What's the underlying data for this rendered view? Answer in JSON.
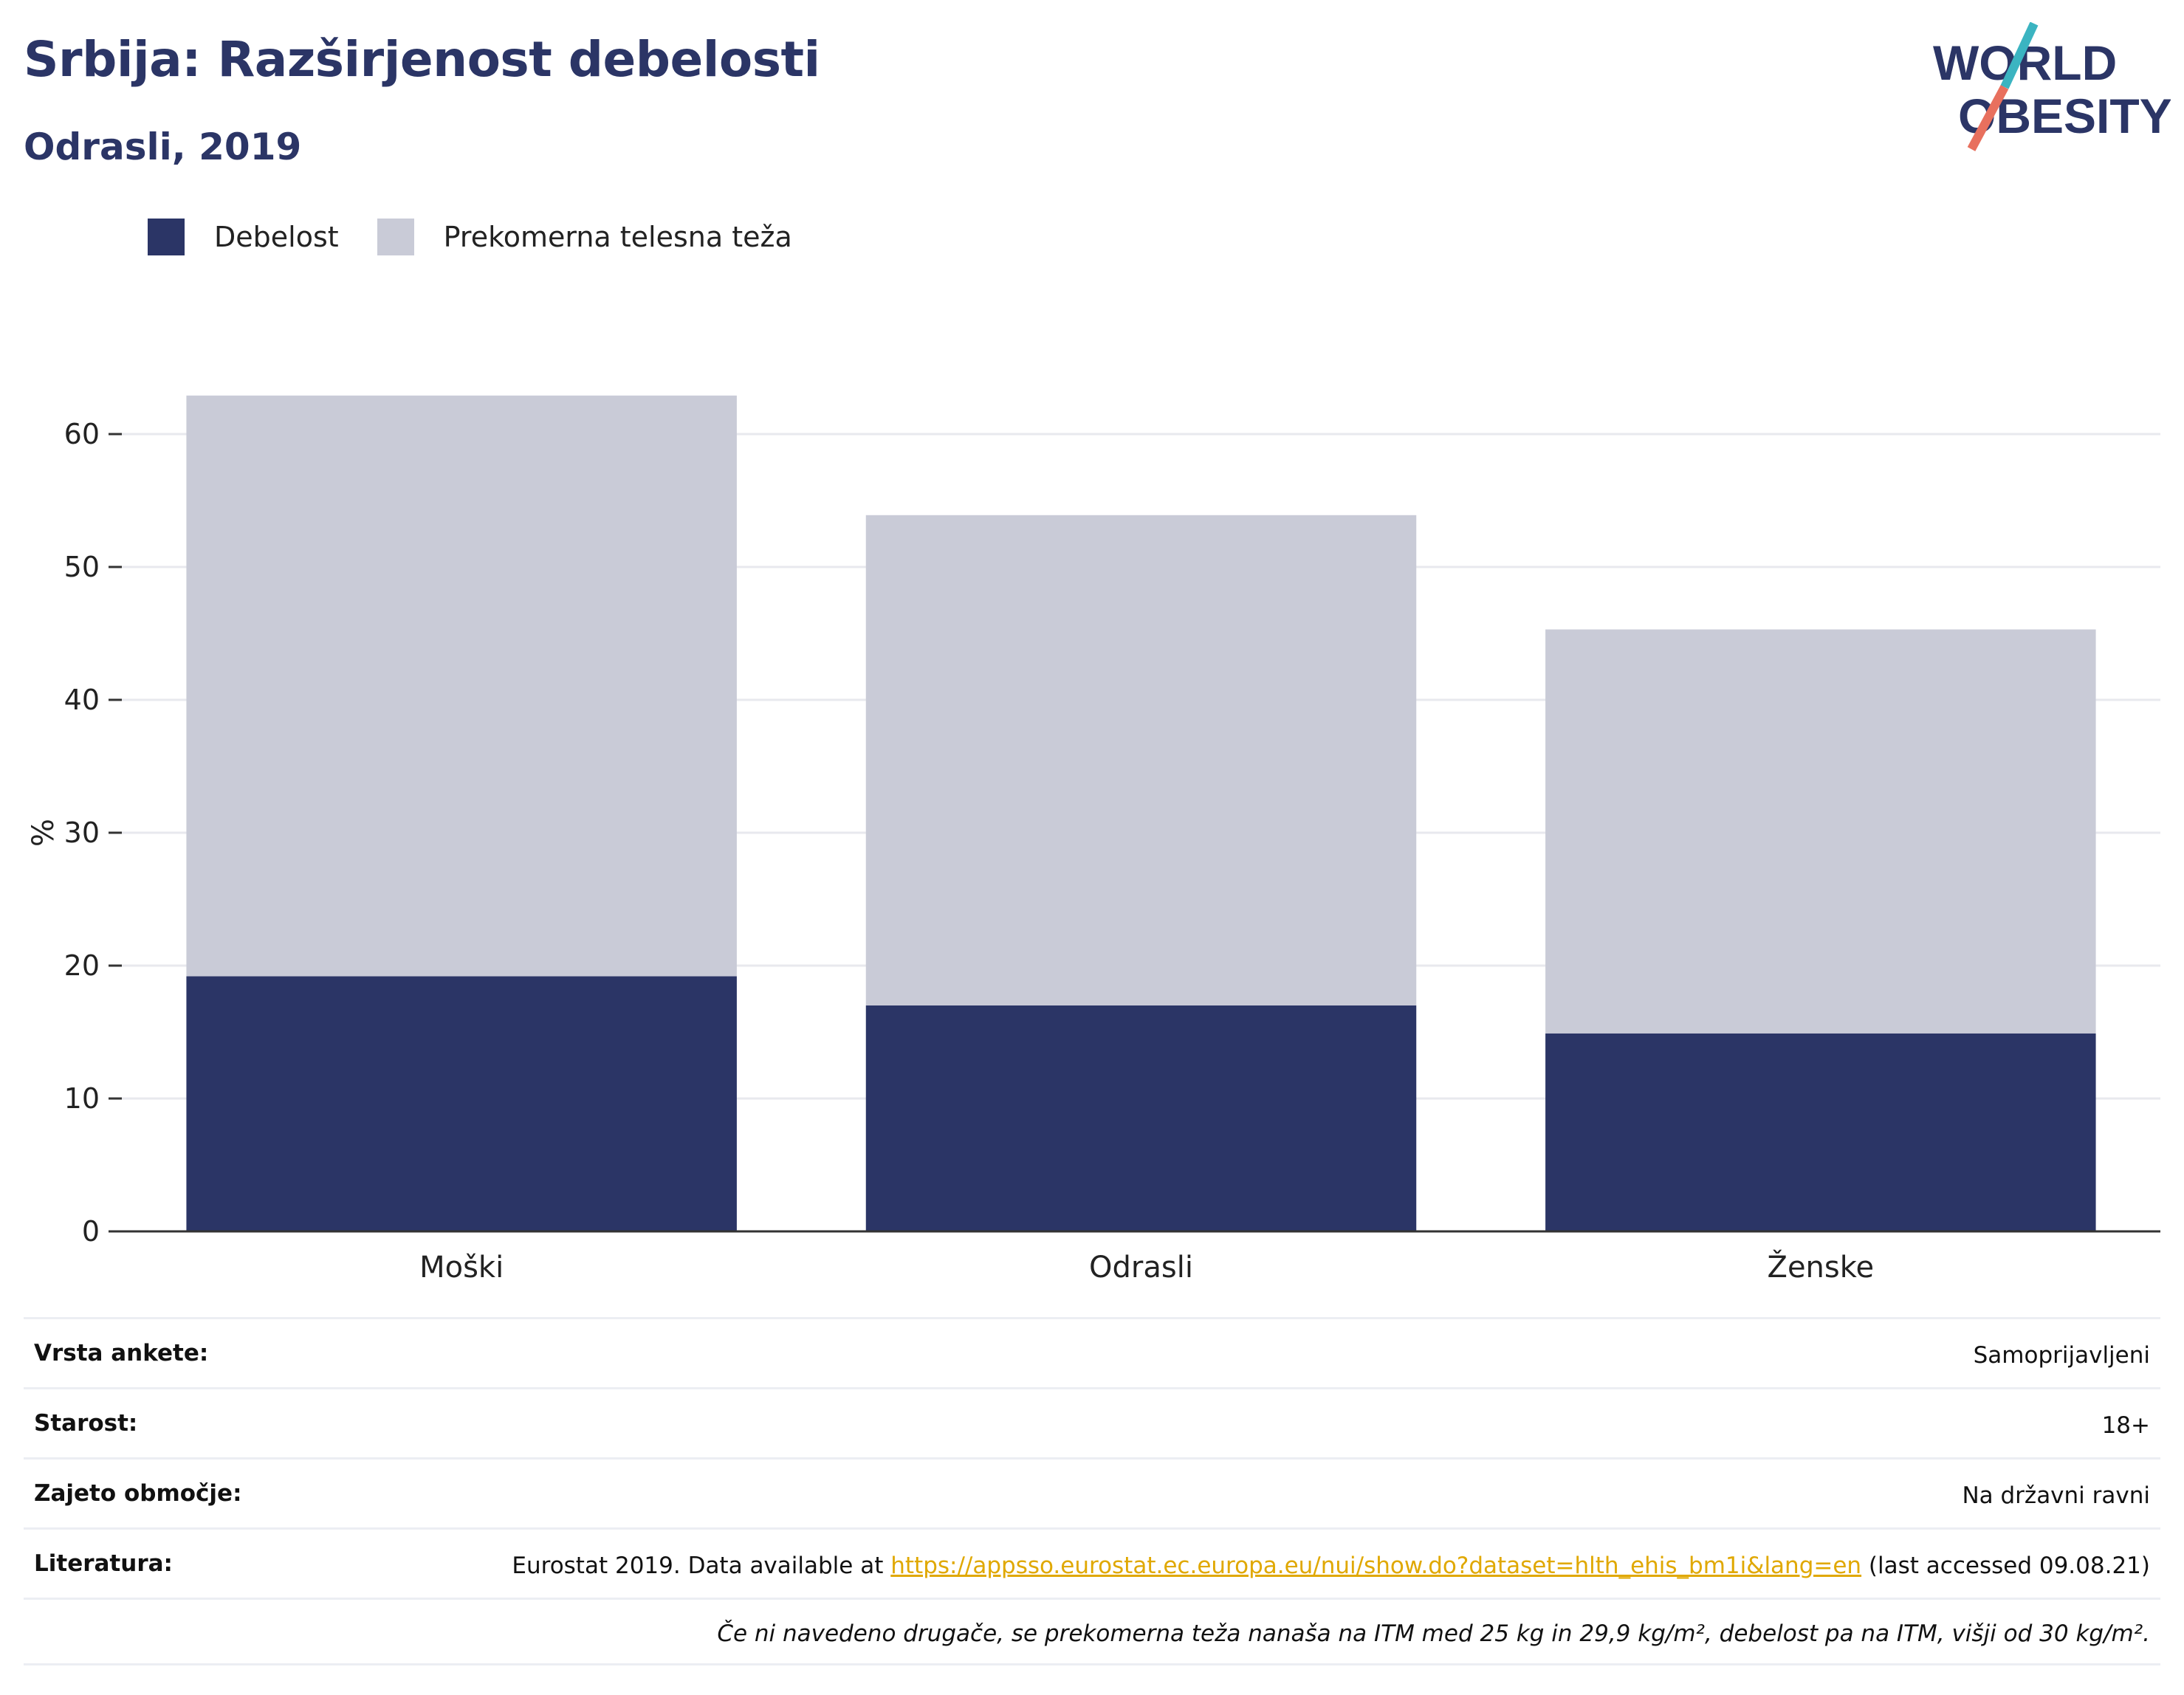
{
  "header": {
    "title": "Srbija: Razširjenost debelosti",
    "subtitle": "Odrasli, 2019"
  },
  "logo": {
    "line1": "WORLD",
    "line2": "OBESITY",
    "colors": {
      "text": "#2b3566",
      "slash_teal": "#3bb4c1",
      "slash_coral": "#e8705e"
    }
  },
  "legend": [
    {
      "label": "Debelost",
      "color": "#2b3566"
    },
    {
      "label": "Prekomerna telesna teža",
      "color": "#c9cbd7"
    }
  ],
  "chart_data": {
    "type": "bar",
    "stacked": true,
    "categories": [
      "Moški",
      "Odrasli",
      "Ženske"
    ],
    "series": [
      {
        "name": "Debelost",
        "color": "#2b3566",
        "values": [
          19.2,
          17.0,
          14.9
        ]
      },
      {
        "name": "Prekomerna telesna teža",
        "color": "#c9cbd7",
        "values": [
          43.7,
          36.9,
          30.4
        ]
      }
    ],
    "ylabel": "%",
    "ylim": [
      0,
      66
    ],
    "yticks": [
      0,
      10,
      20,
      30,
      40,
      50,
      60
    ],
    "grid": true,
    "legend_position": "top-left"
  },
  "info": {
    "rows": [
      {
        "label": "Vrsta ankete:",
        "value": "Samoprijavljeni"
      },
      {
        "label": "Starost:",
        "value": "18+"
      },
      {
        "label": "Zajeto območje:",
        "value": "Na državni ravni"
      }
    ],
    "literature": {
      "label": "Literatura:",
      "prefix": "Eurostat 2019. Data available at ",
      "link": "https://appsso.eurostat.ec.europa.eu/nui/show.do?dataset=hlth_ehis_bm1i&lang=en",
      "suffix": " (last accessed 09.08.21)"
    },
    "note": "Če ni navedeno drugače, se prekomerna teža nanaša na ITM med 25 kg in 29,9 kg/m², debelost pa na ITM, višji od 30 kg/m²."
  }
}
